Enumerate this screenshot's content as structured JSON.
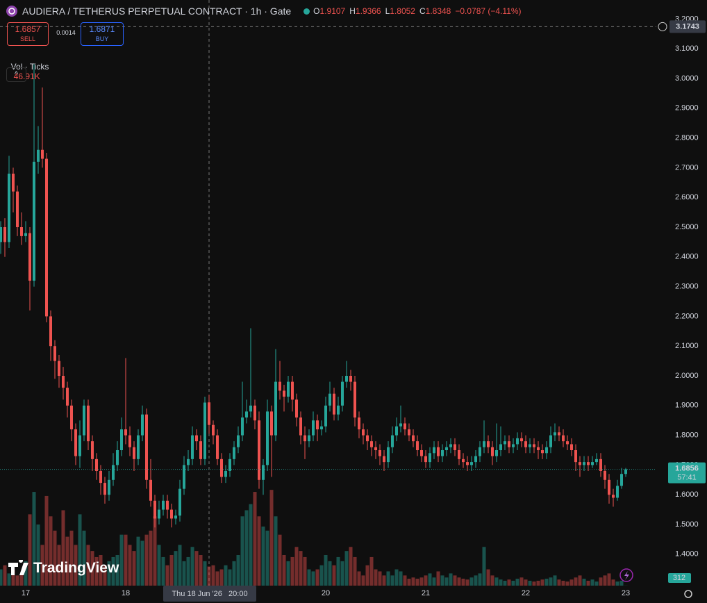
{
  "chart_data": {
    "type": "candlestick",
    "title": "AUDIERA / TETHERUS PERPETUAL CONTRACT · 1h · Gate",
    "ohlc_prefixes": [
      "O",
      "H",
      "L",
      "C"
    ],
    "change": "−0.0787 (−4.11%)",
    "sell_price": "1.6857",
    "sell_label": "SELL",
    "spread": "0.0014",
    "buy_price": "1.6871",
    "buy_label": "BUY",
    "volume_title": "Vol · Ticks",
    "volume_label": "46.91K",
    "crosshair_price": 3.1743,
    "crosshair_time": "Thu 18 Jun '26   20:00",
    "countdown": "57:41",
    "logo": "TradingView",
    "up_color": "#26a69a",
    "down_color": "#ef5350",
    "grid": false,
    "categories": [
      null,
      null,
      null,
      null,
      null,
      null,
      "17",
      null,
      null,
      null,
      null,
      null,
      null,
      null,
      null,
      null,
      null,
      null,
      null,
      null,
      null,
      null,
      null,
      null,
      null,
      null,
      null,
      null,
      null,
      null,
      "18",
      null,
      null,
      null,
      null,
      null,
      null,
      null,
      null,
      null,
      null,
      null,
      null,
      null,
      null,
      null,
      null,
      null,
      null,
      null,
      null,
      null,
      null,
      null,
      null,
      null,
      null,
      null,
      null,
      null,
      null,
      null,
      null,
      null,
      null,
      null,
      null,
      null,
      null,
      null,
      null,
      null,
      null,
      null,
      null,
      null,
      null,
      null,
      "20",
      null,
      null,
      null,
      null,
      null,
      null,
      null,
      null,
      null,
      null,
      null,
      null,
      null,
      null,
      null,
      null,
      null,
      null,
      null,
      null,
      null,
      null,
      null,
      "21",
      null,
      null,
      null,
      null,
      null,
      null,
      null,
      null,
      null,
      null,
      null,
      null,
      null,
      null,
      null,
      null,
      null,
      null,
      null,
      null,
      null,
      null,
      null,
      "22",
      null,
      null,
      null,
      null,
      null,
      null,
      null,
      null,
      null,
      null,
      null,
      null,
      null,
      null,
      null,
      null,
      null,
      null,
      null,
      null,
      null,
      null,
      null,
      "23"
    ],
    "open": [
      2.45,
      2.5,
      2.45,
      2.68,
      2.62,
      2.5,
      2.47,
      2.48,
      2.32,
      2.72,
      2.76,
      2.73,
      2.2,
      2.1,
      2.05,
      2.0,
      1.96,
      1.9,
      1.82,
      1.73,
      1.8,
      1.9,
      1.78,
      1.72,
      1.68,
      1.64,
      1.6,
      1.65,
      1.7,
      1.75,
      1.82,
      1.8,
      1.76,
      1.72,
      1.8,
      1.87,
      1.65,
      1.58,
      1.52,
      1.55,
      1.58,
      1.55,
      1.52,
      1.53,
      1.62,
      1.7,
      1.72,
      1.8,
      1.78,
      1.72,
      1.9107,
      1.8348,
      1.8,
      1.72,
      1.66,
      1.68,
      1.72,
      1.76,
      1.8,
      1.86,
      1.88,
      1.9,
      1.85,
      1.65,
      1.7,
      1.88,
      1.8,
      1.98,
      1.95,
      1.93,
      1.98,
      1.92,
      1.86,
      1.8,
      1.78,
      1.8,
      1.85,
      1.82,
      1.83,
      1.9,
      1.94,
      1.87,
      1.9,
      1.98,
      2.0,
      1.98,
      1.86,
      1.82,
      1.8,
      1.78,
      1.76,
      1.75,
      1.73,
      1.71,
      1.76,
      1.8,
      1.83,
      1.84,
      1.82,
      1.8,
      1.78,
      1.75,
      1.73,
      1.71,
      1.74,
      1.76,
      1.73,
      1.75,
      1.76,
      1.77,
      1.75,
      1.72,
      1.71,
      1.7,
      1.71,
      1.73,
      1.76,
      1.78,
      1.76,
      1.73,
      1.75,
      1.77,
      1.78,
      1.76,
      1.77,
      1.79,
      1.78,
      1.76,
      1.77,
      1.76,
      1.75,
      1.74,
      1.76,
      1.8,
      1.81,
      1.8,
      1.78,
      1.77,
      1.75,
      1.71,
      1.7,
      1.71,
      1.7,
      1.71,
      1.72,
      1.68,
      1.65,
      1.6,
      1.59,
      1.63,
      1.67
    ],
    "high": [
      2.52,
      2.53,
      2.74,
      2.7,
      2.64,
      2.55,
      2.52,
      2.5,
      3.05,
      2.84,
      2.97,
      2.75,
      2.22,
      2.12,
      2.07,
      2.03,
      1.98,
      1.92,
      1.84,
      1.85,
      1.92,
      1.92,
      1.8,
      1.74,
      1.7,
      1.66,
      1.68,
      1.74,
      1.78,
      1.86,
      2.06,
      1.83,
      1.78,
      1.82,
      1.9,
      1.89,
      1.72,
      1.6,
      1.58,
      1.6,
      1.6,
      1.57,
      1.55,
      1.65,
      1.73,
      1.75,
      1.83,
      1.82,
      1.8,
      1.93,
      1.9366,
      1.85,
      1.82,
      1.74,
      1.7,
      1.74,
      1.78,
      1.83,
      1.98,
      1.92,
      2.16,
      1.92,
      1.88,
      1.72,
      1.92,
      1.9,
      2.09,
      2.05,
      1.97,
      2.0,
      2.0,
      1.94,
      1.88,
      1.83,
      1.82,
      1.88,
      1.87,
      1.85,
      1.93,
      1.98,
      1.96,
      1.93,
      2.0,
      2.05,
      2.02,
      2.0,
      1.88,
      1.84,
      1.82,
      1.8,
      1.78,
      1.77,
      1.75,
      1.78,
      1.83,
      1.86,
      1.9,
      1.86,
      1.84,
      1.82,
      1.8,
      1.77,
      1.75,
      1.76,
      1.78,
      1.78,
      1.77,
      1.78,
      1.79,
      1.79,
      1.77,
      1.74,
      1.73,
      1.73,
      1.75,
      1.78,
      1.85,
      1.8,
      1.78,
      1.84,
      1.83,
      1.8,
      1.8,
      1.79,
      1.81,
      1.81,
      1.8,
      1.79,
      1.79,
      1.78,
      1.77,
      1.78,
      1.83,
      1.84,
      1.83,
      1.82,
      1.8,
      1.79,
      1.77,
      1.73,
      1.73,
      1.73,
      1.73,
      1.74,
      1.74,
      1.7,
      1.67,
      1.62,
      1.65,
      1.69,
      1.69
    ],
    "low": [
      2.41,
      2.4,
      2.43,
      2.55,
      2.47,
      2.44,
      2.45,
      2.22,
      2.3,
      2.68,
      2.7,
      2.18,
      2.05,
      1.99,
      1.96,
      1.92,
      1.86,
      1.78,
      1.7,
      1.69,
      1.78,
      1.75,
      1.68,
      1.65,
      1.6,
      1.57,
      1.58,
      1.63,
      1.68,
      1.73,
      1.77,
      1.73,
      1.68,
      1.7,
      1.78,
      1.62,
      1.56,
      1.49,
      1.5,
      1.53,
      1.52,
      1.49,
      1.5,
      1.51,
      1.6,
      1.68,
      1.7,
      1.75,
      1.7,
      1.7,
      1.8052,
      1.77,
      1.7,
      1.64,
      1.64,
      1.66,
      1.7,
      1.74,
      1.78,
      1.84,
      1.86,
      1.82,
      1.62,
      1.6,
      1.68,
      1.66,
      1.78,
      1.92,
      1.88,
      1.91,
      1.88,
      1.83,
      1.77,
      1.72,
      1.76,
      1.78,
      1.78,
      1.8,
      1.81,
      1.88,
      1.85,
      1.85,
      1.88,
      1.96,
      1.95,
      1.83,
      1.79,
      1.77,
      1.75,
      1.73,
      1.72,
      1.7,
      1.68,
      1.69,
      1.74,
      1.78,
      1.81,
      1.8,
      1.78,
      1.76,
      1.73,
      1.71,
      1.69,
      1.69,
      1.72,
      1.71,
      1.71,
      1.73,
      1.74,
      1.73,
      1.7,
      1.69,
      1.68,
      1.68,
      1.69,
      1.71,
      1.74,
      1.74,
      1.7,
      1.71,
      1.73,
      1.75,
      1.74,
      1.74,
      1.75,
      1.76,
      1.74,
      1.74,
      1.74,
      1.72,
      1.72,
      1.72,
      1.74,
      1.78,
      1.78,
      1.76,
      1.75,
      1.73,
      1.68,
      1.66,
      1.68,
      1.68,
      1.69,
      1.7,
      1.66,
      1.62,
      1.57,
      1.56,
      1.58,
      1.62,
      1.66
    ],
    "close": [
      2.5,
      2.45,
      2.68,
      2.62,
      2.5,
      2.47,
      2.48,
      2.32,
      2.72,
      2.76,
      2.73,
      2.2,
      2.1,
      2.05,
      2.0,
      1.96,
      1.9,
      1.82,
      1.73,
      1.8,
      1.9,
      1.78,
      1.72,
      1.68,
      1.64,
      1.6,
      1.65,
      1.7,
      1.75,
      1.82,
      1.8,
      1.76,
      1.72,
      1.8,
      1.87,
      1.65,
      1.58,
      1.52,
      1.55,
      1.58,
      1.55,
      1.52,
      1.53,
      1.62,
      1.7,
      1.72,
      1.8,
      1.78,
      1.72,
      1.91,
      1.8348,
      1.8,
      1.72,
      1.66,
      1.68,
      1.72,
      1.76,
      1.8,
      1.86,
      1.88,
      1.9,
      1.85,
      1.65,
      1.7,
      1.88,
      1.8,
      1.98,
      1.95,
      1.93,
      1.98,
      1.92,
      1.86,
      1.8,
      1.78,
      1.8,
      1.85,
      1.82,
      1.83,
      1.9,
      1.94,
      1.87,
      1.9,
      1.98,
      2.0,
      1.98,
      1.86,
      1.82,
      1.8,
      1.78,
      1.76,
      1.75,
      1.73,
      1.71,
      1.76,
      1.8,
      1.83,
      1.84,
      1.82,
      1.8,
      1.78,
      1.75,
      1.73,
      1.71,
      1.74,
      1.76,
      1.73,
      1.75,
      1.76,
      1.77,
      1.75,
      1.72,
      1.71,
      1.7,
      1.71,
      1.73,
      1.76,
      1.78,
      1.76,
      1.73,
      1.75,
      1.77,
      1.78,
      1.76,
      1.77,
      1.79,
      1.78,
      1.76,
      1.77,
      1.76,
      1.75,
      1.74,
      1.76,
      1.8,
      1.81,
      1.8,
      1.78,
      1.77,
      1.75,
      1.71,
      1.7,
      1.71,
      1.7,
      1.71,
      1.72,
      1.68,
      1.65,
      1.6,
      1.59,
      1.63,
      1.67,
      1.6856
    ],
    "volume": [
      40000,
      50000,
      30000,
      40000,
      25000,
      30000,
      60000,
      175000,
      230000,
      150000,
      100000,
      220000,
      170000,
      135000,
      100000,
      185000,
      120000,
      135000,
      100000,
      175000,
      135000,
      100000,
      85000,
      70000,
      75000,
      50000,
      60000,
      70000,
      75000,
      125000,
      125000,
      100000,
      85000,
      120000,
      110000,
      125000,
      135000,
      170000,
      100000,
      70000,
      50000,
      75000,
      85000,
      100000,
      60000,
      70000,
      95000,
      85000,
      75000,
      60000,
      46910,
      50000,
      35000,
      40000,
      50000,
      40000,
      60000,
      75000,
      170000,
      185000,
      200000,
      230000,
      170000,
      145000,
      135000,
      235000,
      170000,
      125000,
      75000,
      60000,
      70000,
      95000,
      85000,
      70000,
      40000,
      35000,
      40000,
      50000,
      75000,
      60000,
      50000,
      70000,
      60000,
      85000,
      95000,
      70000,
      35000,
      25000,
      50000,
      70000,
      40000,
      35000,
      25000,
      35000,
      25000,
      40000,
      35000,
      25000,
      17000,
      20000,
      17000,
      20000,
      25000,
      30000,
      20000,
      35000,
      25000,
      20000,
      30000,
      25000,
      20000,
      17000,
      15000,
      20000,
      25000,
      30000,
      95000,
      40000,
      25000,
      20000,
      15000,
      12000,
      15000,
      12000,
      17000,
      20000,
      15000,
      12000,
      10000,
      12000,
      15000,
      17000,
      20000,
      25000,
      15000,
      12000,
      10000,
      15000,
      20000,
      25000,
      17000,
      12000,
      15000,
      10000,
      20000,
      25000,
      30000,
      15000,
      10000,
      12000,
      312
    ],
    "ylim": [
      1.2944,
      3.264
    ],
    "yticks": [
      {
        "value": 1.4,
        "label": "1.4000"
      },
      {
        "value": 1.5,
        "label": "1.5000"
      },
      {
        "value": 1.6,
        "label": "1.6000"
      },
      {
        "value": 1.7,
        "label": "1.7000"
      },
      {
        "value": 1.8,
        "label": "1.8000"
      },
      {
        "value": 1.9,
        "label": "1.9000"
      },
      {
        "value": 2.0,
        "label": "2.0000"
      },
      {
        "value": 2.1,
        "label": "2.1000"
      },
      {
        "value": 2.2,
        "label": "2.2000"
      },
      {
        "value": 2.3,
        "label": "2.3000"
      },
      {
        "value": 2.4,
        "label": "2.4000"
      },
      {
        "value": 2.5,
        "label": "2.5000"
      },
      {
        "value": 2.6,
        "label": "2.6000"
      },
      {
        "value": 2.7,
        "label": "2.7000"
      },
      {
        "value": 2.8,
        "label": "2.8000"
      },
      {
        "value": 2.9,
        "label": "2.9000"
      },
      {
        "value": 3.0,
        "label": "3.0000"
      },
      {
        "value": 3.1,
        "label": "3.1000"
      },
      {
        "value": 3.2,
        "label": "3.2000"
      }
    ],
    "vlim": [
      0,
      300000
    ]
  }
}
